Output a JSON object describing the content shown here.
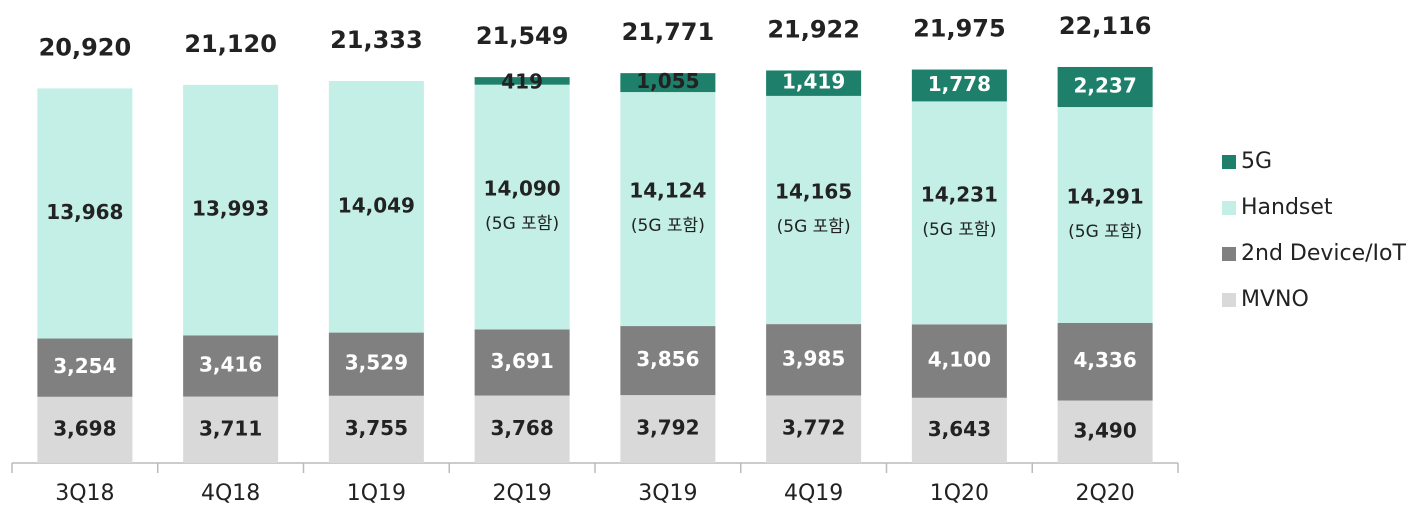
{
  "chart_data": {
    "type": "stacked_bar",
    "categories": [
      "3Q18",
      "4Q18",
      "1Q19",
      "2Q19",
      "3Q19",
      "4Q19",
      "1Q20",
      "2Q20"
    ],
    "series": [
      {
        "name": "MVNO",
        "color": "#d9d9d9",
        "values": [
          3698,
          3711,
          3755,
          3768,
          3792,
          3772,
          3643,
          3490
        ],
        "value_labels": [
          "3,698",
          "3,711",
          "3,755",
          "3,768",
          "3,792",
          "3,772",
          "3,643",
          "3,490"
        ]
      },
      {
        "name": "2nd Device/IoT",
        "color": "#808080",
        "values": [
          3254,
          3416,
          3529,
          3691,
          3856,
          3985,
          4100,
          4336
        ],
        "value_labels": [
          "3,254",
          "3,416",
          "3,529",
          "3,691",
          "3,856",
          "3,985",
          "4,100",
          "4,336"
        ]
      },
      {
        "name": "Handset",
        "color": "#c3efe6",
        "values": [
          13968,
          13993,
          14049,
          14090,
          14124,
          14165,
          14231,
          14291
        ],
        "value_labels": [
          "13,968",
          "13,993",
          "14,049",
          "14,090",
          "14,124",
          "14,165",
          "14,231",
          "14,291"
        ],
        "note": "(5G 포함)"
      },
      {
        "name": "5G",
        "color": "#1e7f6a",
        "values": [
          null,
          null,
          null,
          419,
          1055,
          1419,
          1778,
          2237
        ],
        "value_labels": [
          null,
          null,
          null,
          "419",
          "1,055",
          "1,419",
          "1,778",
          "2,237"
        ]
      }
    ],
    "totals": {
      "values": [
        20920,
        21120,
        21333,
        21549,
        21771,
        21922,
        21975,
        22116
      ],
      "value_labels": [
        "20,920",
        "21,120",
        "21,333",
        "21,549",
        "21,771",
        "21,922",
        "21,975",
        "22,116"
      ]
    }
  }
}
